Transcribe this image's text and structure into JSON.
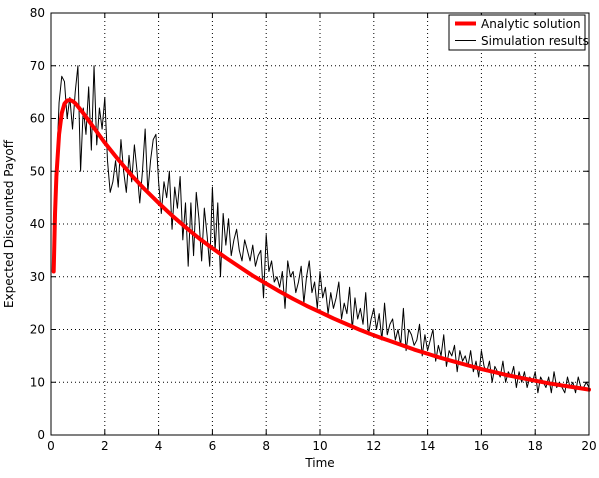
{
  "chart_data": {
    "type": "line",
    "title": "",
    "xlabel": "Time",
    "ylabel": "Expected Discounted Payoff",
    "xlim": [
      0,
      20
    ],
    "ylim": [
      0,
      80
    ],
    "xticks": [
      0,
      2,
      4,
      6,
      8,
      10,
      12,
      14,
      16,
      18,
      20
    ],
    "yticks": [
      0,
      10,
      20,
      30,
      40,
      50,
      60,
      70,
      80
    ],
    "grid": true,
    "legend_position": "top-right",
    "series": [
      {
        "name": "Analytic solution",
        "color": "#ff0000",
        "x": [
          0.1,
          0.15,
          0.2,
          0.3,
          0.4,
          0.5,
          0.6,
          0.7,
          0.8,
          0.9,
          1.0,
          1.2,
          1.4,
          1.6,
          1.8,
          2.0,
          2.5,
          3.0,
          3.5,
          4.0,
          4.5,
          5.0,
          5.5,
          6.0,
          6.5,
          7.0,
          7.5,
          8.0,
          8.5,
          9.0,
          9.5,
          10.0,
          10.5,
          11.0,
          11.5,
          12.0,
          12.5,
          13.0,
          13.5,
          14.0,
          14.5,
          15.0,
          15.5,
          16.0,
          16.5,
          17.0,
          17.5,
          18.0,
          18.5,
          19.0,
          19.5,
          20.0
        ],
        "y": [
          31,
          42,
          49,
          57,
          61,
          62.8,
          63.4,
          63.5,
          63.3,
          62.9,
          62.3,
          61,
          59.6,
          58.2,
          56.8,
          55.4,
          52.2,
          49.2,
          46.5,
          44.0,
          41.6,
          39.4,
          37.3,
          35.4,
          33.6,
          31.9,
          30.2,
          28.7,
          27.2,
          25.8,
          24.5,
          23.3,
          22.1,
          21.0,
          19.9,
          18.9,
          18.0,
          17.1,
          16.2,
          15.4,
          14.6,
          13.9,
          13.2,
          12.5,
          11.9,
          11.3,
          10.8,
          10.3,
          9.8,
          9.4,
          9.0,
          8.6
        ]
      },
      {
        "name": "Simulation results",
        "color": "#000000",
        "x": [
          0.1,
          0.2,
          0.3,
          0.4,
          0.5,
          0.6,
          0.7,
          0.8,
          0.9,
          1.0,
          1.1,
          1.2,
          1.3,
          1.4,
          1.5,
          1.6,
          1.7,
          1.8,
          1.9,
          2.0,
          2.1,
          2.2,
          2.3,
          2.4,
          2.5,
          2.6,
          2.7,
          2.8,
          2.9,
          3.0,
          3.1,
          3.2,
          3.3,
          3.4,
          3.5,
          3.6,
          3.7,
          3.8,
          3.9,
          4.0,
          4.1,
          4.2,
          4.3,
          4.4,
          4.5,
          4.6,
          4.7,
          4.8,
          4.9,
          5.0,
          5.1,
          5.2,
          5.3,
          5.4,
          5.5,
          5.6,
          5.7,
          5.8,
          5.9,
          6.0,
          6.1,
          6.2,
          6.3,
          6.4,
          6.5,
          6.6,
          6.7,
          6.8,
          6.9,
          7.0,
          7.1,
          7.2,
          7.3,
          7.4,
          7.5,
          7.6,
          7.7,
          7.8,
          7.9,
          8.0,
          8.1,
          8.2,
          8.3,
          8.4,
          8.5,
          8.6,
          8.7,
          8.8,
          8.9,
          9.0,
          9.1,
          9.2,
          9.3,
          9.4,
          9.5,
          9.6,
          9.7,
          9.8,
          9.9,
          10.0,
          10.1,
          10.2,
          10.3,
          10.4,
          10.5,
          10.6,
          10.7,
          10.8,
          10.9,
          11.0,
          11.1,
          11.2,
          11.3,
          11.4,
          11.5,
          11.6,
          11.7,
          11.8,
          11.9,
          12.0,
          12.1,
          12.2,
          12.3,
          12.4,
          12.5,
          12.6,
          12.7,
          12.8,
          12.9,
          13.0,
          13.1,
          13.2,
          13.3,
          13.4,
          13.5,
          13.6,
          13.7,
          13.8,
          13.9,
          14.0,
          14.1,
          14.2,
          14.3,
          14.4,
          14.5,
          14.6,
          14.7,
          14.8,
          14.9,
          15.0,
          15.1,
          15.2,
          15.3,
          15.4,
          15.5,
          15.6,
          15.7,
          15.8,
          15.9,
          16.0,
          16.1,
          16.2,
          16.3,
          16.4,
          16.5,
          16.6,
          16.7,
          16.8,
          16.9,
          17.0,
          17.1,
          17.2,
          17.3,
          17.4,
          17.5,
          17.6,
          17.7,
          17.8,
          17.9,
          18.0,
          18.1,
          18.2,
          18.3,
          18.4,
          18.5,
          18.6,
          18.7,
          18.8,
          18.9,
          19.0,
          19.1,
          19.2,
          19.3,
          19.4,
          19.5,
          19.6,
          19.7,
          19.8,
          19.9,
          20.0
        ],
        "y": [
          33,
          50,
          63,
          68,
          67,
          60,
          64,
          58,
          65,
          70,
          50,
          62,
          57,
          66,
          54,
          70,
          55,
          62,
          58,
          64,
          52,
          46,
          48,
          52,
          47,
          56,
          50,
          46,
          53,
          48,
          55,
          50,
          44,
          50,
          58,
          46,
          52,
          56,
          57,
          48,
          42,
          48,
          45,
          50,
          39,
          47,
          43,
          49,
          37,
          44,
          32,
          44,
          34,
          46,
          41,
          33,
          43,
          38,
          32,
          47,
          35,
          44,
          30,
          42,
          36,
          41,
          34,
          37,
          39,
          35,
          33,
          37,
          35,
          33,
          36,
          32,
          34,
          35,
          26,
          38,
          31,
          33,
          29,
          30,
          28,
          31,
          24,
          33,
          30,
          31,
          27,
          29,
          32,
          25,
          30,
          33,
          27,
          29,
          24,
          31,
          26,
          28,
          23,
          27,
          24,
          26,
          29,
          22,
          25,
          23,
          28,
          20,
          26,
          22,
          24,
          21,
          27,
          19,
          22,
          24,
          20,
          23,
          18,
          25,
          19,
          21,
          22,
          18,
          20,
          17,
          24,
          16,
          20,
          19,
          17,
          18,
          21,
          15,
          19,
          16,
          18,
          20,
          14,
          17,
          15,
          19,
          13,
          16,
          15,
          17,
          12,
          16,
          14,
          15,
          13,
          16,
          12,
          14,
          11,
          16,
          13,
          12,
          14,
          10,
          13,
          12,
          11,
          14,
          10,
          12,
          11,
          13,
          9,
          12,
          10,
          12,
          9,
          11,
          10,
          12,
          8,
          11,
          10,
          9,
          11,
          8,
          12,
          9,
          10,
          9,
          8,
          11,
          9,
          10,
          8,
          11,
          9,
          9,
          10,
          9
        ]
      }
    ]
  }
}
